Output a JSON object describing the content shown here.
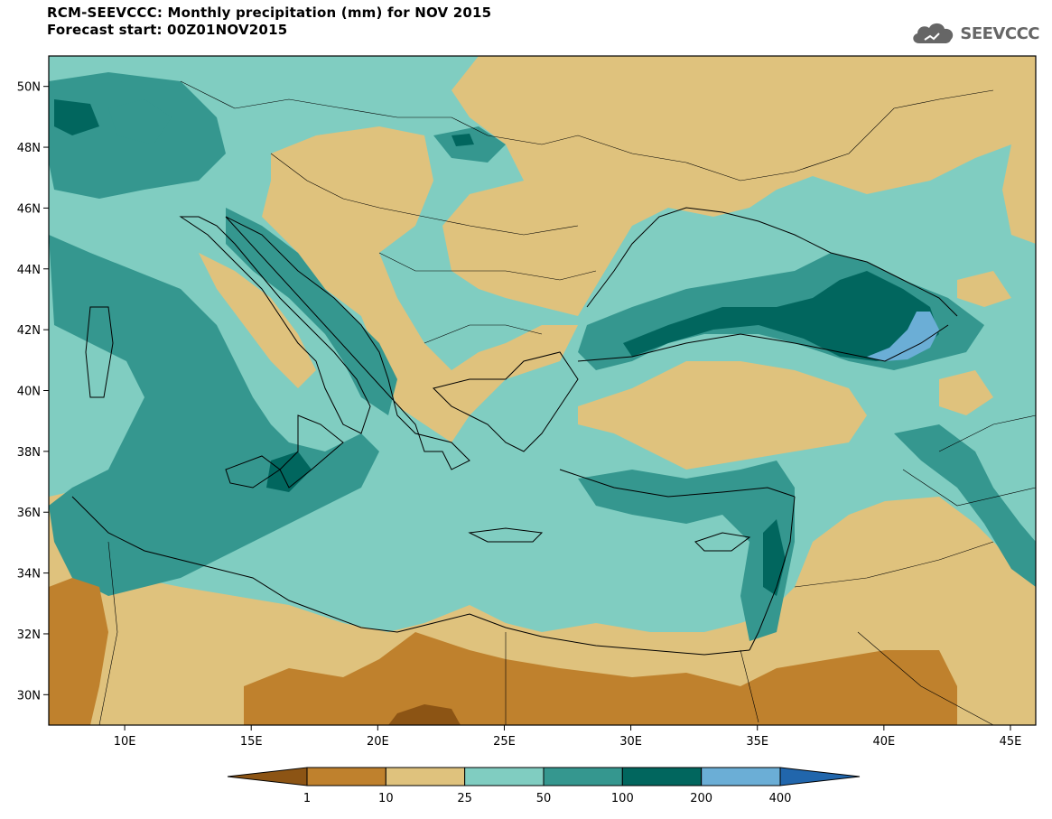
{
  "header": {
    "title": "RCM-SEEVCCC: Monthly precipitation (mm) for NOV 2015",
    "subtitle": "Forecast start: 00Z01NOV2015"
  },
  "logo": {
    "text": "SEEVCCC",
    "icon": "cloud-icon"
  },
  "map": {
    "lon_range": [
      7,
      46
    ],
    "lat_range": [
      29,
      51
    ],
    "lat_ticks": [
      {
        "value": 50,
        "label": "50N"
      },
      {
        "value": 48,
        "label": "48N"
      },
      {
        "value": 46,
        "label": "46N"
      },
      {
        "value": 44,
        "label": "44N"
      },
      {
        "value": 42,
        "label": "42N"
      },
      {
        "value": 40,
        "label": "40N"
      },
      {
        "value": 38,
        "label": "38N"
      },
      {
        "value": 36,
        "label": "36N"
      },
      {
        "value": 34,
        "label": "34N"
      },
      {
        "value": 32,
        "label": "32N"
      },
      {
        "value": 30,
        "label": "30N"
      }
    ],
    "lon_ticks": [
      {
        "value": 10,
        "label": "10E"
      },
      {
        "value": 15,
        "label": "15E"
      },
      {
        "value": 20,
        "label": "20E"
      },
      {
        "value": 25,
        "label": "25E"
      },
      {
        "value": 30,
        "label": "30E"
      },
      {
        "value": 35,
        "label": "35E"
      },
      {
        "value": 40,
        "label": "40E"
      },
      {
        "value": 45,
        "label": "45E"
      }
    ]
  },
  "colorbar": {
    "colors": [
      "#8c5414",
      "#bf812d",
      "#dfc27d",
      "#80cdc1",
      "#35978f",
      "#01665e",
      "#6baed6",
      "#2166ac"
    ],
    "labels": [
      "1",
      "10",
      "25",
      "50",
      "100",
      "200",
      "400"
    ]
  }
}
